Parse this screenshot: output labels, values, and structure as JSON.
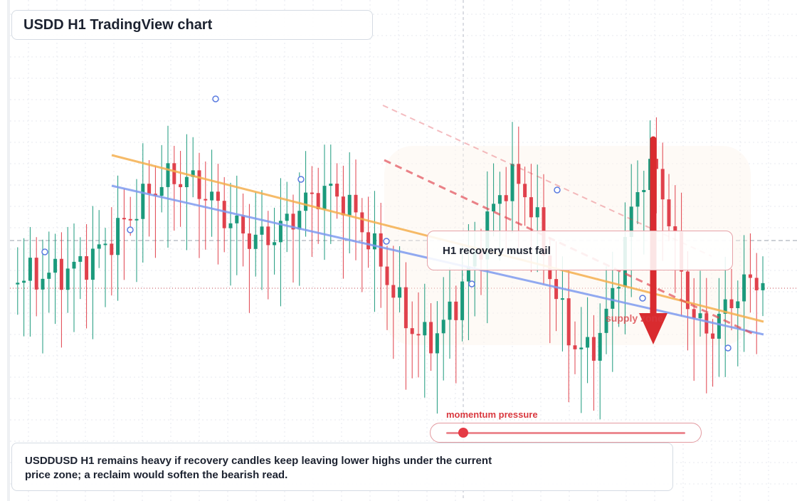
{
  "title": "USDD H1 TradingView chart",
  "callout": "H1 recovery must fail",
  "supply_label": "supply zone",
  "momentum": {
    "label": "momentum pressure",
    "value": 0.07
  },
  "note": "USDDUSD H1 remains heavy if recovery candles keep leaving lower highs under the current price zone; a reclaim would soften the bearish read.",
  "colors": {
    "bull": "#1b9a7c",
    "bear": "#e0414c",
    "trend_orange": "#f5b04f",
    "trend_blue": "#7f9cf0",
    "dashed_red": "#e0414c",
    "arrow": "#d92b2f"
  },
  "chart_data": {
    "type": "candlestick",
    "title": "USDD H1 TradingView chart",
    "timeframe": "H1",
    "symbol": "USDDUSD",
    "candle_count": 120,
    "trend_lines": [
      "descending orange trend line",
      "descending blue trend line",
      "two dashed red descending lines"
    ],
    "annotations": [
      "H1 recovery must fail",
      "supply zone",
      "momentum pressure"
    ],
    "grid": true
  }
}
